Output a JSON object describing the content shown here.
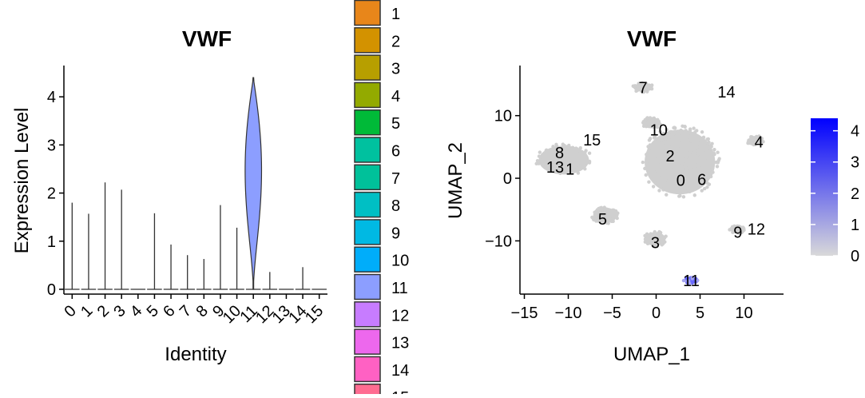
{
  "colors": {
    "violin_stroke": "#333333",
    "cluster11_violin_fill": "#8C9EFF",
    "umap_points": "#cfcfcf",
    "expression_low": "#d9d9d9",
    "expression_high": "#0000ff"
  },
  "chart_data": [
    {
      "type": "violin",
      "title": "VWF",
      "xlabel": "Identity",
      "ylabel": "Expression Level",
      "ylim": [
        -0.1,
        4.65
      ],
      "yticks": [
        0,
        1,
        2,
        3,
        4
      ],
      "categories": [
        "0",
        "1",
        "2",
        "3",
        "4",
        "5",
        "6",
        "7",
        "8",
        "9",
        "10",
        "11",
        "12",
        "13",
        "14",
        "15"
      ],
      "max_expression": [
        1.8,
        1.57,
        2.22,
        2.07,
        0,
        1.58,
        0.93,
        0.71,
        0.63,
        1.75,
        1.28,
        4.4,
        0.36,
        0,
        0.46,
        0
      ],
      "violin_fill_cluster": "11",
      "tick_label_angle": "45-degree rotated"
    },
    {
      "type": "legend",
      "title": "",
      "placement": "center",
      "visible_entries": [
        {
          "label": "1",
          "color": "#E8861A",
          "partial": true
        },
        {
          "label": "2",
          "color": "#D39200"
        },
        {
          "label": "3",
          "color": "#B79F00"
        },
        {
          "label": "4",
          "color": "#93AA00"
        },
        {
          "label": "5",
          "color": "#00BA38"
        },
        {
          "label": "6",
          "color": "#00C19F"
        },
        {
          "label": "7",
          "color": "#00C19A"
        },
        {
          "label": "8",
          "color": "#00BFC4"
        },
        {
          "label": "9",
          "color": "#00B9E3"
        },
        {
          "label": "10",
          "color": "#00ADFA"
        },
        {
          "label": "11",
          "color": "#8C9EFF"
        },
        {
          "label": "12",
          "color": "#C77CFF"
        },
        {
          "label": "13",
          "color": "#ED68ED"
        },
        {
          "label": "14",
          "color": "#FF61C3"
        },
        {
          "label": "15",
          "color": "#FF6C91",
          "partial": true
        }
      ]
    },
    {
      "type": "scatter",
      "title": "VWF",
      "xlabel": "UMAP_1",
      "ylabel": "UMAP_2",
      "xlim": [
        -15.5,
        14.5
      ],
      "ylim": [
        -18.5,
        18
      ],
      "xticks": [
        -15,
        -10,
        -5,
        0,
        5,
        10
      ],
      "yticks": [
        -10,
        0,
        10
      ],
      "cluster_labels": [
        {
          "label": "7",
          "x": -1.5,
          "y": 14.5
        },
        {
          "label": "14",
          "x": 8,
          "y": 13.8
        },
        {
          "label": "10",
          "x": 0.3,
          "y": 7.7
        },
        {
          "label": "15",
          "x": -7.3,
          "y": 6.1
        },
        {
          "label": "4",
          "x": 11.7,
          "y": 5.8
        },
        {
          "label": "8",
          "x": -11,
          "y": 4.1
        },
        {
          "label": "2",
          "x": 1.6,
          "y": 3.6
        },
        {
          "label": "13",
          "x": -11.5,
          "y": 1.8
        },
        {
          "label": "1",
          "x": -9.8,
          "y": 1.5
        },
        {
          "label": "0",
          "x": 2.8,
          "y": -0.3
        },
        {
          "label": "6",
          "x": 5.2,
          "y": -0.2
        },
        {
          "label": "5",
          "x": -6.1,
          "y": -6.5
        },
        {
          "label": "12",
          "x": 11.4,
          "y": -8.1
        },
        {
          "label": "9",
          "x": 9.3,
          "y": -8.6
        },
        {
          "label": "3",
          "x": -0.1,
          "y": -10.3
        },
        {
          "label": "11",
          "x": 4,
          "y": -16.3
        }
      ],
      "clusters_region": [
        {
          "cx": 2.7,
          "cy": 2.6,
          "rx": 7.3,
          "ry": 9.4
        },
        {
          "cx": -10.5,
          "cy": 2.9,
          "rx": 5.2,
          "ry": 4.2
        },
        {
          "cx": -1.5,
          "cy": 14.5,
          "rx": 2,
          "ry": 1.2
        },
        {
          "cx": -0.6,
          "cy": 8.8,
          "rx": 1.8,
          "ry": 1.5
        },
        {
          "cx": 11.3,
          "cy": 6,
          "rx": 1.6,
          "ry": 1.3
        },
        {
          "cx": -5.8,
          "cy": -5.9,
          "rx": 2.5,
          "ry": 2.2
        },
        {
          "cx": -0.1,
          "cy": -9.7,
          "rx": 2.1,
          "ry": 2
        },
        {
          "cx": 9.2,
          "cy": -8.2,
          "rx": 1.4,
          "ry": 1
        },
        {
          "cx": 3.9,
          "cy": -16.3,
          "rx": 1.3,
          "ry": 0.8
        }
      ],
      "colorbar": {
        "min": 0,
        "max": 4.4,
        "ticks": [
          0,
          1,
          2,
          3,
          4
        ],
        "low_color": "#d9d9d9",
        "high_color": "#0000ff"
      }
    }
  ]
}
